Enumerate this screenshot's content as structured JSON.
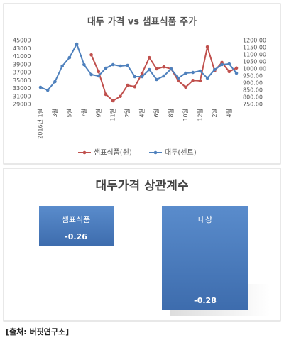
{
  "chart_data": {
    "type": "line",
    "title": "대두 가격 vs 샘표식품 주가",
    "categories": [
      "2016년 1월",
      null,
      "3월",
      null,
      "5월",
      null,
      "7월",
      null,
      "9월",
      null,
      "11월",
      null,
      "2월",
      null,
      "4월",
      null,
      "6월",
      null,
      "8월",
      null,
      "10월",
      null,
      "12월",
      null,
      "2월",
      null,
      "4월",
      null
    ],
    "series": [
      {
        "name": "샘표식품(원)",
        "color": "#c0504d",
        "values": [
          null,
          null,
          null,
          null,
          null,
          null,
          null,
          41400,
          37200,
          31500,
          29900,
          31000,
          33800,
          33400,
          36800,
          40700,
          37900,
          38400,
          37900,
          34900,
          33300,
          35000,
          34900,
          43400,
          37400,
          39500,
          37200,
          38100
        ]
      },
      {
        "name": "대두(센트)",
        "color": "#4f81bd",
        "axis": "y2",
        "values": [
          870,
          850,
          910,
          1020,
          1080,
          1175,
          1030,
          960,
          950,
          1005,
          1030,
          1020,
          1025,
          945,
          945,
          995,
          925,
          950,
          1000,
          935,
          970,
          975,
          985,
          935,
          995,
          1030,
          1035,
          970
        ]
      }
    ],
    "ylim": [
      29000,
      45000
    ],
    "yticks": [
      29000,
      31000,
      33000,
      35000,
      37000,
      39000,
      41000,
      43000,
      45000
    ],
    "y2lim": [
      750,
      1200
    ],
    "y2ticks": [
      {
        "value": 750,
        "label": "750.00"
      },
      {
        "value": 800,
        "label": "800.00"
      },
      {
        "value": 850,
        "label": "850.00"
      },
      {
        "value": 900,
        "label": "900.00"
      },
      {
        "value": 950,
        "label": "950.00"
      },
      {
        "value": 1000,
        "label": "1000.00"
      },
      {
        "value": 1050,
        "label": "1050.00"
      },
      {
        "value": 1100,
        "label": "1100.00"
      },
      {
        "value": 1150,
        "label": "1150.00"
      },
      {
        "value": 1200,
        "label": "1200.00"
      }
    ],
    "grid": false,
    "legend": "bottom"
  },
  "correlation": {
    "title": "대두가격 상관계수",
    "items": [
      {
        "name": "샘표식품",
        "value": -0.26
      },
      {
        "name": "대상",
        "value": -0.28
      }
    ]
  },
  "source": "[출처: 버핏연구소]"
}
